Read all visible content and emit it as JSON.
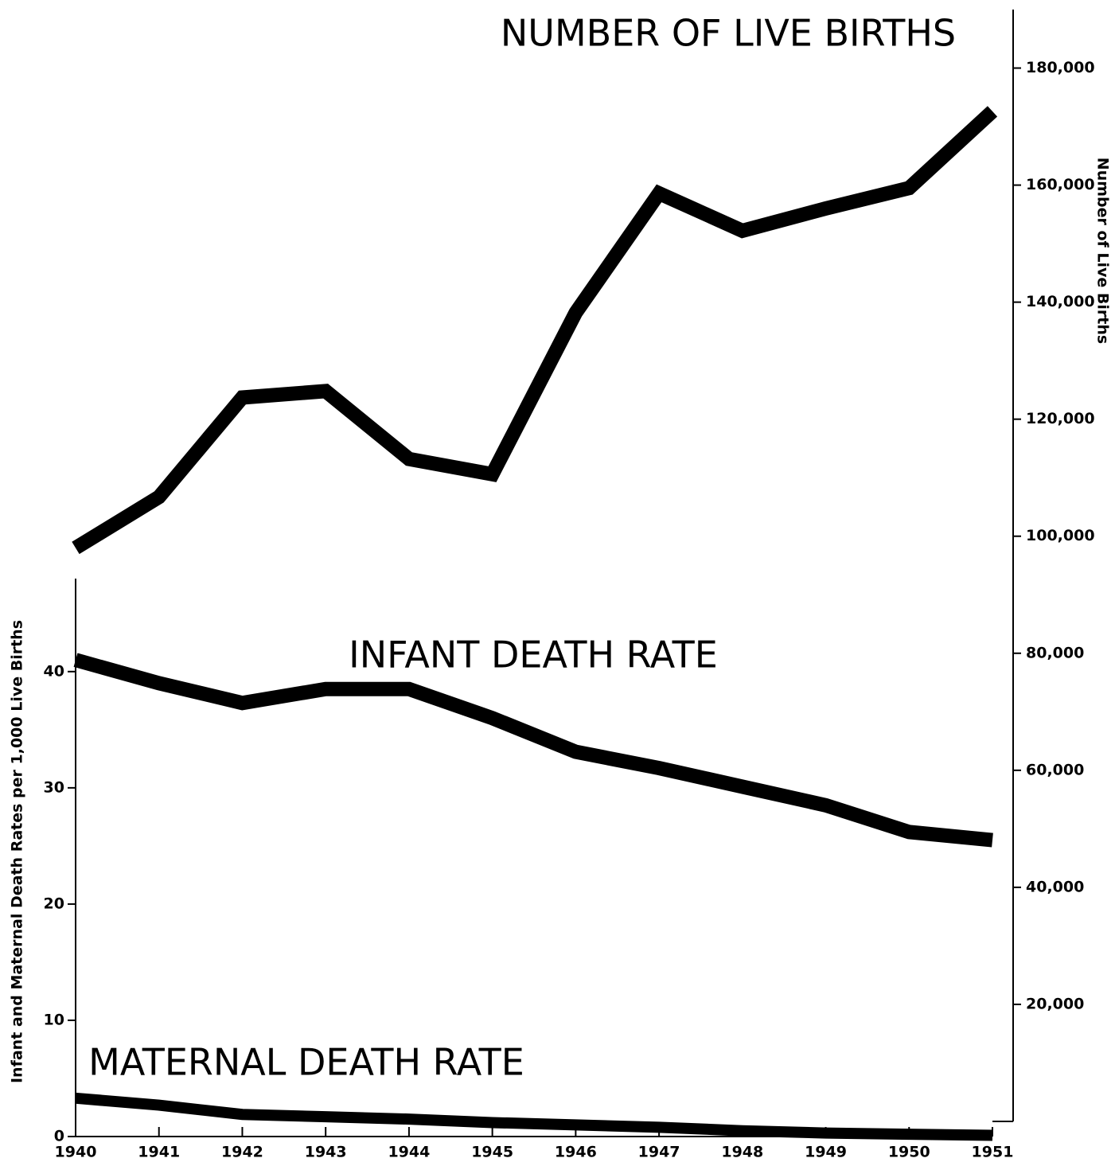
{
  "chart_data": {
    "type": "line",
    "x": [
      1940,
      1941,
      1942,
      1943,
      1944,
      1945,
      1946,
      1947,
      1948,
      1949,
      1950,
      1951
    ],
    "xlim": [
      1940,
      1951
    ],
    "xticks": [
      1940,
      1941,
      1942,
      1943,
      1944,
      1945,
      1946,
      1947,
      1948,
      1949,
      1950,
      1951
    ],
    "ylabel": "Infant and Maternal Death Rates per 1,000 Live Births",
    "ylim": [
      0,
      48
    ],
    "yticks": [
      0,
      10,
      20,
      30,
      40
    ],
    "y2label": "Number of Live Births",
    "y2lim": [
      0,
      190000
    ],
    "y2ticks": [
      {
        "value": 20000,
        "label": "20,000"
      },
      {
        "value": 40000,
        "label": "40,000"
      },
      {
        "value": 60000,
        "label": "60,000"
      },
      {
        "value": 80000,
        "label": "80,000"
      },
      {
        "value": 100000,
        "label": "100,000"
      },
      {
        "value": 120000,
        "label": "120,000"
      },
      {
        "value": 140000,
        "label": "140,000"
      },
      {
        "value": 160000,
        "label": "160,000"
      },
      {
        "value": 180000,
        "label": "180,000"
      }
    ],
    "series": [
      {
        "name": "NUMBER OF LIVE BIRTHS",
        "color": "#000000",
        "axis": "y2",
        "values": [
          98000,
          106700,
          123700,
          124800,
          113200,
          110600,
          138200,
          158600,
          152200,
          156000,
          159500,
          172600
        ]
      },
      {
        "name": "INFANT DEATH RATE",
        "color": "#000000",
        "values": [
          41.0,
          39.0,
          37.3,
          38.5,
          38.5,
          36.0,
          33.1,
          31.7,
          30.1,
          28.5,
          26.2,
          25.5
        ]
      },
      {
        "name": "MATERNAL DEATH RATE",
        "color": "#000000",
        "values": [
          3.3,
          2.7,
          1.9,
          1.7,
          1.5,
          1.2,
          1.0,
          0.8,
          0.5,
          0.3,
          0.2,
          0.1
        ]
      }
    ]
  }
}
